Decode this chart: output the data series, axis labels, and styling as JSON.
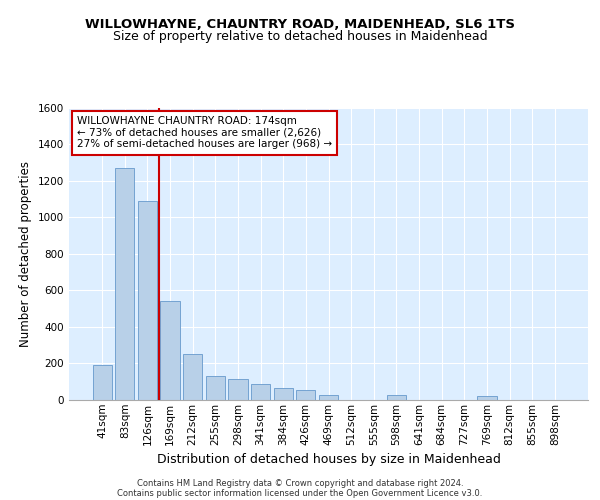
{
  "title1": "WILLOWHAYNE, CHAUNTRY ROAD, MAIDENHEAD, SL6 1TS",
  "title2": "Size of property relative to detached houses in Maidenhead",
  "xlabel": "Distribution of detached houses by size in Maidenhead",
  "ylabel": "Number of detached properties",
  "categories": [
    "41sqm",
    "83sqm",
    "126sqm",
    "169sqm",
    "212sqm",
    "255sqm",
    "298sqm",
    "341sqm",
    "384sqm",
    "426sqm",
    "469sqm",
    "512sqm",
    "555sqm",
    "598sqm",
    "641sqm",
    "684sqm",
    "727sqm",
    "769sqm",
    "812sqm",
    "855sqm",
    "898sqm"
  ],
  "values": [
    190,
    1270,
    1090,
    540,
    250,
    130,
    115,
    90,
    65,
    55,
    30,
    0,
    0,
    30,
    0,
    0,
    0,
    20,
    0,
    0,
    0
  ],
  "bar_color": "#b8d0e8",
  "bar_edge_color": "#6699cc",
  "vline_color": "#cc0000",
  "vline_pos": 2.5,
  "annotation_text": "WILLOWHAYNE CHAUNTRY ROAD: 174sqm\n← 73% of detached houses are smaller (2,626)\n27% of semi-detached houses are larger (968) →",
  "annotation_box_facecolor": "#ffffff",
  "annotation_box_edgecolor": "#cc0000",
  "ylim": [
    0,
    1600
  ],
  "yticks": [
    0,
    200,
    400,
    600,
    800,
    1000,
    1200,
    1400,
    1600
  ],
  "background_color": "#ddeeff",
  "footer1": "Contains HM Land Registry data © Crown copyright and database right 2024.",
  "footer2": "Contains public sector information licensed under the Open Government Licence v3.0.",
  "title1_fontsize": 9.5,
  "title2_fontsize": 9,
  "xlabel_fontsize": 9,
  "ylabel_fontsize": 8.5,
  "tick_fontsize": 7.5,
  "annotation_fontsize": 7.5,
  "footer_fontsize": 6
}
